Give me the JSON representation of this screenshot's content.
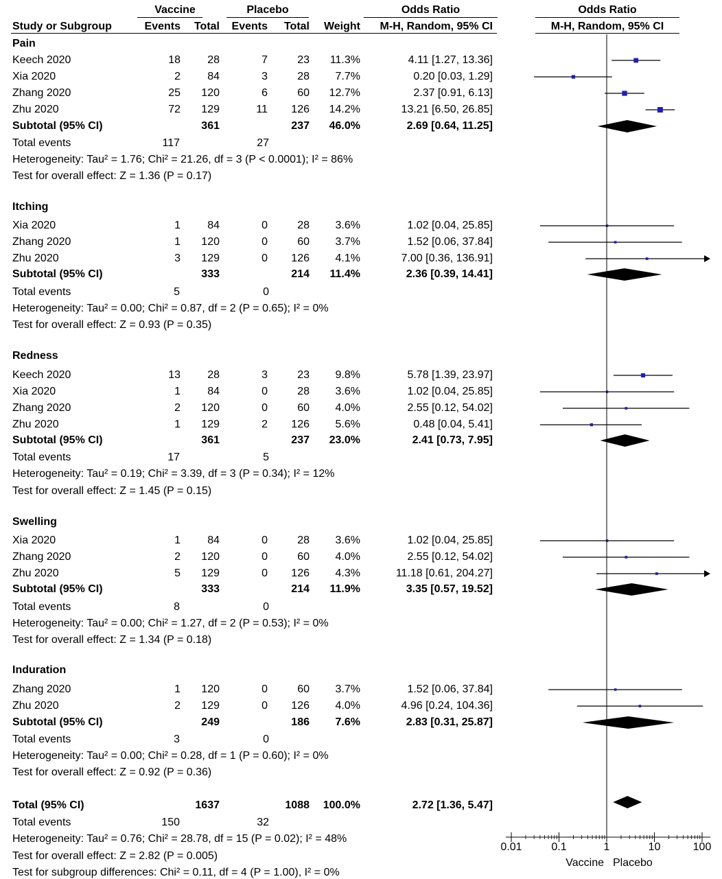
{
  "header": {
    "vaccine": "Vaccine",
    "placebo": "Placebo",
    "odds_ratio": "Odds Ratio",
    "odds_ratio_plot": "Odds Ratio",
    "study": "Study or Subgroup",
    "events1": "Events",
    "total1": "Total",
    "events2": "Events",
    "total2": "Total",
    "weight": "Weight",
    "method": "M-H, Random, 95% CI",
    "method_plot": "M-H, Random, 95% CI"
  },
  "groups": [
    {
      "name": "Pain",
      "studies": [
        {
          "study": "Keech 2020",
          "e1": "18",
          "n1": "28",
          "e2": "7",
          "n2": "23",
          "w": "11.3%",
          "ci": "4.11 [1.27, 13.36]",
          "or": 4.11,
          "lo": 1.27,
          "hi": 13.36
        },
        {
          "study": "Xia 2020",
          "e1": "2",
          "n1": "84",
          "e2": "3",
          "n2": "28",
          "w": "7.7%",
          "ci": "0.20 [0.03, 1.29]",
          "or": 0.2,
          "lo": 0.03,
          "hi": 1.29
        },
        {
          "study": "Zhang 2020",
          "e1": "25",
          "n1": "120",
          "e2": "6",
          "n2": "60",
          "w": "12.7%",
          "ci": "2.37 [0.91, 6.13]",
          "or": 2.37,
          "lo": 0.91,
          "hi": 6.13
        },
        {
          "study": "Zhu 2020",
          "e1": "72",
          "n1": "129",
          "e2": "11",
          "n2": "126",
          "w": "14.2%",
          "ci": "13.21 [6.50, 26.85]",
          "or": 13.21,
          "lo": 6.5,
          "hi": 26.85
        }
      ],
      "subtotal": {
        "label": "Subtotal (95% CI)",
        "n1": "361",
        "n2": "237",
        "w": "46.0%",
        "ci": "2.69 [0.64, 11.25]",
        "or": 2.69,
        "lo": 0.64,
        "hi": 11.25
      },
      "total_events": {
        "label": "Total events",
        "e1": "117",
        "e2": "27"
      },
      "heterogeneity": "Heterogeneity: Tau² = 1.76; Chi² = 21.26, df = 3 (P < 0.0001); I² = 86%",
      "overall": "Test for overall effect: Z = 1.36 (P = 0.17)"
    },
    {
      "name": "Itching",
      "studies": [
        {
          "study": "Xia 2020",
          "e1": "1",
          "n1": "84",
          "e2": "0",
          "n2": "28",
          "w": "3.6%",
          "ci": "1.02 [0.04, 25.85]",
          "or": 1.02,
          "lo": 0.04,
          "hi": 25.85
        },
        {
          "study": "Zhang 2020",
          "e1": "1",
          "n1": "120",
          "e2": "0",
          "n2": "60",
          "w": "3.7%",
          "ci": "1.52 [0.06, 37.84]",
          "or": 1.52,
          "lo": 0.06,
          "hi": 37.84
        },
        {
          "study": "Zhu 2020",
          "e1": "3",
          "n1": "129",
          "e2": "0",
          "n2": "126",
          "w": "4.1%",
          "ci": "7.00 [0.36, 136.91]",
          "or": 7.0,
          "lo": 0.36,
          "hi": 136.91
        }
      ],
      "subtotal": {
        "label": "Subtotal (95% CI)",
        "n1": "333",
        "n2": "214",
        "w": "11.4%",
        "ci": "2.36 [0.39, 14.41]",
        "or": 2.36,
        "lo": 0.39,
        "hi": 14.41
      },
      "total_events": {
        "label": "Total events",
        "e1": "5",
        "e2": "0"
      },
      "heterogeneity": "Heterogeneity: Tau² = 0.00; Chi² = 0.87, df = 2 (P = 0.65); I² = 0%",
      "overall": "Test for overall effect: Z = 0.93 (P = 0.35)"
    },
    {
      "name": "Redness",
      "studies": [
        {
          "study": "Keech 2020",
          "e1": "13",
          "n1": "28",
          "e2": "3",
          "n2": "23",
          "w": "9.8%",
          "ci": "5.78 [1.39, 23.97]",
          "or": 5.78,
          "lo": 1.39,
          "hi": 23.97
        },
        {
          "study": "Xia 2020",
          "e1": "1",
          "n1": "84",
          "e2": "0",
          "n2": "28",
          "w": "3.6%",
          "ci": "1.02 [0.04, 25.85]",
          "or": 1.02,
          "lo": 0.04,
          "hi": 25.85
        },
        {
          "study": "Zhang 2020",
          "e1": "2",
          "n1": "120",
          "e2": "0",
          "n2": "60",
          "w": "4.0%",
          "ci": "2.55 [0.12, 54.02]",
          "or": 2.55,
          "lo": 0.12,
          "hi": 54.02
        },
        {
          "study": "Zhu 2020",
          "e1": "1",
          "n1": "129",
          "e2": "2",
          "n2": "126",
          "w": "5.6%",
          "ci": "0.48 [0.04, 5.41]",
          "or": 0.48,
          "lo": 0.04,
          "hi": 5.41
        }
      ],
      "subtotal": {
        "label": "Subtotal (95% CI)",
        "n1": "361",
        "n2": "237",
        "w": "23.0%",
        "ci": "2.41 [0.73, 7.95]",
        "or": 2.41,
        "lo": 0.73,
        "hi": 7.95
      },
      "total_events": {
        "label": "Total events",
        "e1": "17",
        "e2": "5"
      },
      "heterogeneity": "Heterogeneity: Tau² = 0.19; Chi² = 3.39, df = 3 (P = 0.34); I² = 12%",
      "overall": "Test for overall effect: Z = 1.45 (P = 0.15)"
    },
    {
      "name": "Swelling",
      "studies": [
        {
          "study": "Xia 2020",
          "e1": "1",
          "n1": "84",
          "e2": "0",
          "n2": "28",
          "w": "3.6%",
          "ci": "1.02 [0.04, 25.85]",
          "or": 1.02,
          "lo": 0.04,
          "hi": 25.85
        },
        {
          "study": "Zhang 2020",
          "e1": "2",
          "n1": "120",
          "e2": "0",
          "n2": "60",
          "w": "4.0%",
          "ci": "2.55 [0.12, 54.02]",
          "or": 2.55,
          "lo": 0.12,
          "hi": 54.02
        },
        {
          "study": "Zhu 2020",
          "e1": "5",
          "n1": "129",
          "e2": "0",
          "n2": "126",
          "w": "4.3%",
          "ci": "11.18 [0.61, 204.27]",
          "or": 11.18,
          "lo": 0.61,
          "hi": 204.27
        }
      ],
      "subtotal": {
        "label": "Subtotal (95% CI)",
        "n1": "333",
        "n2": "214",
        "w": "11.9%",
        "ci": "3.35 [0.57, 19.52]",
        "or": 3.35,
        "lo": 0.57,
        "hi": 19.52
      },
      "total_events": {
        "label": "Total events",
        "e1": "8",
        "e2": "0"
      },
      "heterogeneity": "Heterogeneity: Tau² = 0.00; Chi² = 1.27, df = 2 (P = 0.53); I² = 0%",
      "overall": "Test for overall effect: Z = 1.34 (P = 0.18)"
    },
    {
      "name": "Induration",
      "studies": [
        {
          "study": "Zhang 2020",
          "e1": "1",
          "n1": "120",
          "e2": "0",
          "n2": "60",
          "w": "3.7%",
          "ci": "1.52 [0.06, 37.84]",
          "or": 1.52,
          "lo": 0.06,
          "hi": 37.84
        },
        {
          "study": "Zhu 2020",
          "e1": "2",
          "n1": "129",
          "e2": "0",
          "n2": "126",
          "w": "4.0%",
          "ci": "4.96 [0.24, 104.36]",
          "or": 4.96,
          "lo": 0.24,
          "hi": 104.36
        }
      ],
      "subtotal": {
        "label": "Subtotal (95% CI)",
        "n1": "249",
        "n2": "186",
        "w": "7.6%",
        "ci": "2.83 [0.31, 25.87]",
        "or": 2.83,
        "lo": 0.31,
        "hi": 25.87
      },
      "total_events": {
        "label": "Total events",
        "e1": "3",
        "e2": "0"
      },
      "heterogeneity": "Heterogeneity: Tau² = 0.00; Chi² = 0.28, df = 1 (P = 0.60); I² = 0%",
      "overall": "Test for overall effect: Z = 0.92 (P = 0.36)"
    }
  ],
  "total": {
    "label": "Total (95% CI)",
    "n1": "1637",
    "n2": "1088",
    "w": "100.0%",
    "ci": "2.72 [1.36, 5.47]",
    "or": 2.72,
    "lo": 1.36,
    "hi": 5.47,
    "events_label": "Total events",
    "e1": "150",
    "e2": "32",
    "heterogeneity": "Heterogeneity: Tau² = 0.76; Chi² = 28.78, df = 15 (P = 0.02); I² = 48%",
    "overall": "Test for overall effect: Z = 2.82 (P = 0.005)",
    "subgroup": "Test for subgroup differences: Chi² = 0.11, df = 4 (P = 1.00), I² = 0%"
  },
  "axis": {
    "ticks": [
      "0.01",
      "0.1",
      "1",
      "10",
      "100"
    ],
    "tick_values": [
      0.01,
      0.1,
      1,
      10,
      100
    ],
    "left_label": "Vaccine",
    "right_label": "Placebo"
  },
  "colors": {
    "marker": "#1f1fb4",
    "line": "#000000",
    "diamond": "#000000"
  },
  "chart_data": {
    "type": "forest",
    "scale": "log",
    "xlim": [
      0.01,
      100
    ],
    "reference_line": 1,
    "studies": [
      {
        "group": "Pain",
        "study": "Keech 2020",
        "or": 4.11,
        "ci": [
          1.27,
          13.36
        ],
        "weight": 11.3
      },
      {
        "group": "Pain",
        "study": "Xia 2020",
        "or": 0.2,
        "ci": [
          0.03,
          1.29
        ],
        "weight": 7.7
      },
      {
        "group": "Pain",
        "study": "Zhang 2020",
        "or": 2.37,
        "ci": [
          0.91,
          6.13
        ],
        "weight": 12.7
      },
      {
        "group": "Pain",
        "study": "Zhu 2020",
        "or": 13.21,
        "ci": [
          6.5,
          26.85
        ],
        "weight": 14.2
      },
      {
        "group": "Itching",
        "study": "Xia 2020",
        "or": 1.02,
        "ci": [
          0.04,
          25.85
        ],
        "weight": 3.6
      },
      {
        "group": "Itching",
        "study": "Zhang 2020",
        "or": 1.52,
        "ci": [
          0.06,
          37.84
        ],
        "weight": 3.7
      },
      {
        "group": "Itching",
        "study": "Zhu 2020",
        "or": 7.0,
        "ci": [
          0.36,
          136.91
        ],
        "weight": 4.1
      },
      {
        "group": "Redness",
        "study": "Keech 2020",
        "or": 5.78,
        "ci": [
          1.39,
          23.97
        ],
        "weight": 9.8
      },
      {
        "group": "Redness",
        "study": "Xia 2020",
        "or": 1.02,
        "ci": [
          0.04,
          25.85
        ],
        "weight": 3.6
      },
      {
        "group": "Redness",
        "study": "Zhang 2020",
        "or": 2.55,
        "ci": [
          0.12,
          54.02
        ],
        "weight": 4.0
      },
      {
        "group": "Redness",
        "study": "Zhu 2020",
        "or": 0.48,
        "ci": [
          0.04,
          5.41
        ],
        "weight": 5.6
      },
      {
        "group": "Swelling",
        "study": "Xia 2020",
        "or": 1.02,
        "ci": [
          0.04,
          25.85
        ],
        "weight": 3.6
      },
      {
        "group": "Swelling",
        "study": "Zhang 2020",
        "or": 2.55,
        "ci": [
          0.12,
          54.02
        ],
        "weight": 4.0
      },
      {
        "group": "Swelling",
        "study": "Zhu 2020",
        "or": 11.18,
        "ci": [
          0.61,
          204.27
        ],
        "weight": 4.3
      },
      {
        "group": "Induration",
        "study": "Zhang 2020",
        "or": 1.52,
        "ci": [
          0.06,
          37.84
        ],
        "weight": 3.7
      },
      {
        "group": "Induration",
        "study": "Zhu 2020",
        "or": 4.96,
        "ci": [
          0.24,
          104.36
        ],
        "weight": 4.0
      }
    ],
    "subtotals": [
      {
        "group": "Pain",
        "or": 2.69,
        "ci": [
          0.64,
          11.25
        ],
        "weight": 46.0
      },
      {
        "group": "Itching",
        "or": 2.36,
        "ci": [
          0.39,
          14.41
        ],
        "weight": 11.4
      },
      {
        "group": "Redness",
        "or": 2.41,
        "ci": [
          0.73,
          7.95
        ],
        "weight": 23.0
      },
      {
        "group": "Swelling",
        "or": 3.35,
        "ci": [
          0.57,
          19.52
        ],
        "weight": 11.9
      },
      {
        "group": "Induration",
        "or": 2.83,
        "ci": [
          0.31,
          25.87
        ],
        "weight": 7.6
      }
    ],
    "overall": {
      "or": 2.72,
      "ci": [
        1.36,
        5.47
      ],
      "weight": 100.0
    }
  }
}
